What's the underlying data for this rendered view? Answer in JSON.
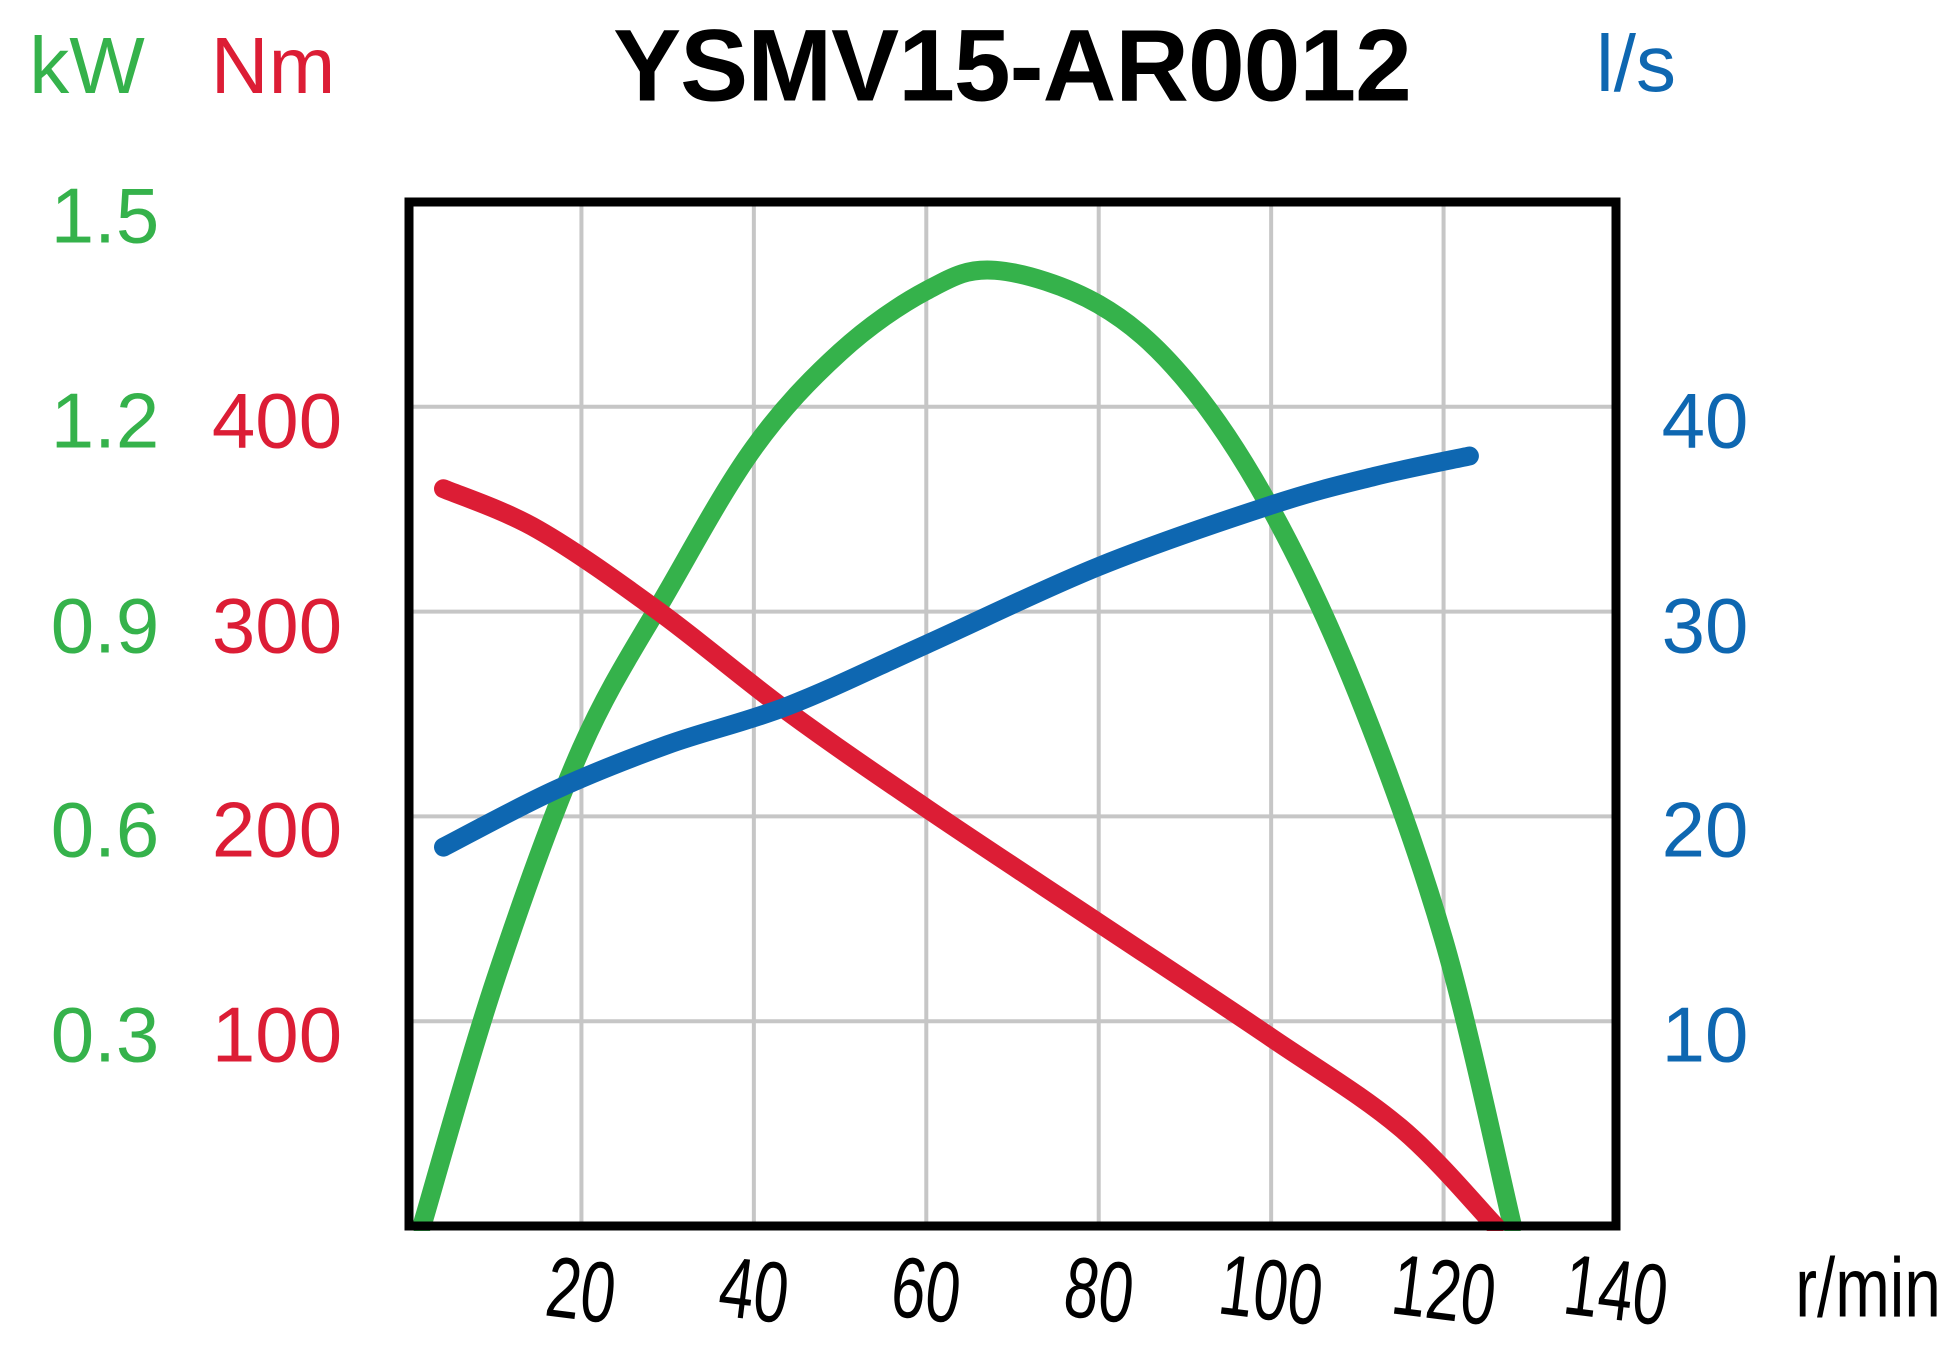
{
  "title": "YSMV15-AR0012",
  "chart_data": {
    "type": "line",
    "title": "YSMV15-AR0012",
    "grid": true,
    "legend": "none",
    "x_axis": {
      "unit": "r/min",
      "min": 0,
      "max": 140,
      "ticks": [
        {
          "label": "20",
          "value": 20
        },
        {
          "label": "40",
          "value": 40
        },
        {
          "label": "60",
          "value": 60
        },
        {
          "label": "80",
          "value": 80
        },
        {
          "label": "100",
          "value": 100
        },
        {
          "label": "120",
          "value": 120
        },
        {
          "label": "140",
          "value": 140
        }
      ]
    },
    "y_axes": {
      "power": {
        "unit": "kW",
        "color": "#35b24b",
        "side": "left",
        "min": 0,
        "max": 1.5,
        "ticks": [
          {
            "label": "1.5",
            "value": 1.5
          },
          {
            "label": "1.2",
            "value": 1.2
          },
          {
            "label": "0.9",
            "value": 0.9
          },
          {
            "label": "0.6",
            "value": 0.6
          },
          {
            "label": "0.3",
            "value": 0.3
          }
        ]
      },
      "torque": {
        "unit": "Nm",
        "color": "#dc1d35",
        "side": "left",
        "min": 0,
        "max": 500,
        "ticks": [
          {
            "label": "400",
            "value": 400
          },
          {
            "label": "300",
            "value": 300
          },
          {
            "label": "200",
            "value": 200
          },
          {
            "label": "100",
            "value": 100
          }
        ]
      },
      "flow": {
        "unit": "l/s",
        "color": "#0e67b1",
        "side": "right",
        "min": 0,
        "max": 50,
        "ticks": [
          {
            "label": "40",
            "value": 40
          },
          {
            "label": "30",
            "value": 30
          },
          {
            "label": "20",
            "value": 20
          },
          {
            "label": "10",
            "value": 10
          }
        ]
      }
    },
    "series": [
      {
        "name": "power",
        "axis": "power",
        "unit": "kW",
        "color": "#35b24b",
        "points": [
          [
            1.5,
            0
          ],
          [
            10,
            0.36
          ],
          [
            20,
            0.7
          ],
          [
            30,
            0.93
          ],
          [
            40,
            1.14
          ],
          [
            50,
            1.28
          ],
          [
            60,
            1.37
          ],
          [
            68,
            1.4
          ],
          [
            80,
            1.35
          ],
          [
            90,
            1.24
          ],
          [
            100,
            1.05
          ],
          [
            110,
            0.78
          ],
          [
            120,
            0.42
          ],
          [
            128,
            0
          ]
        ]
      },
      {
        "name": "torque",
        "axis": "torque",
        "unit": "Nm",
        "color": "#dc1d35",
        "points": [
          [
            4,
            360
          ],
          [
            15,
            340
          ],
          [
            29,
            300
          ],
          [
            44,
            251
          ],
          [
            60,
            204
          ],
          [
            80,
            148
          ],
          [
            100,
            92
          ],
          [
            115,
            48
          ],
          [
            126,
            0
          ]
        ]
      },
      {
        "name": "flow",
        "axis": "flow",
        "unit": "l/s",
        "color": "#0e67b1",
        "points": [
          [
            4,
            18.5
          ],
          [
            17,
            21.3
          ],
          [
            30,
            23.5
          ],
          [
            44,
            25.4
          ],
          [
            60,
            28.4
          ],
          [
            80,
            32.2
          ],
          [
            100,
            35.2
          ],
          [
            112,
            36.6
          ],
          [
            123,
            37.6
          ]
        ]
      }
    ]
  }
}
